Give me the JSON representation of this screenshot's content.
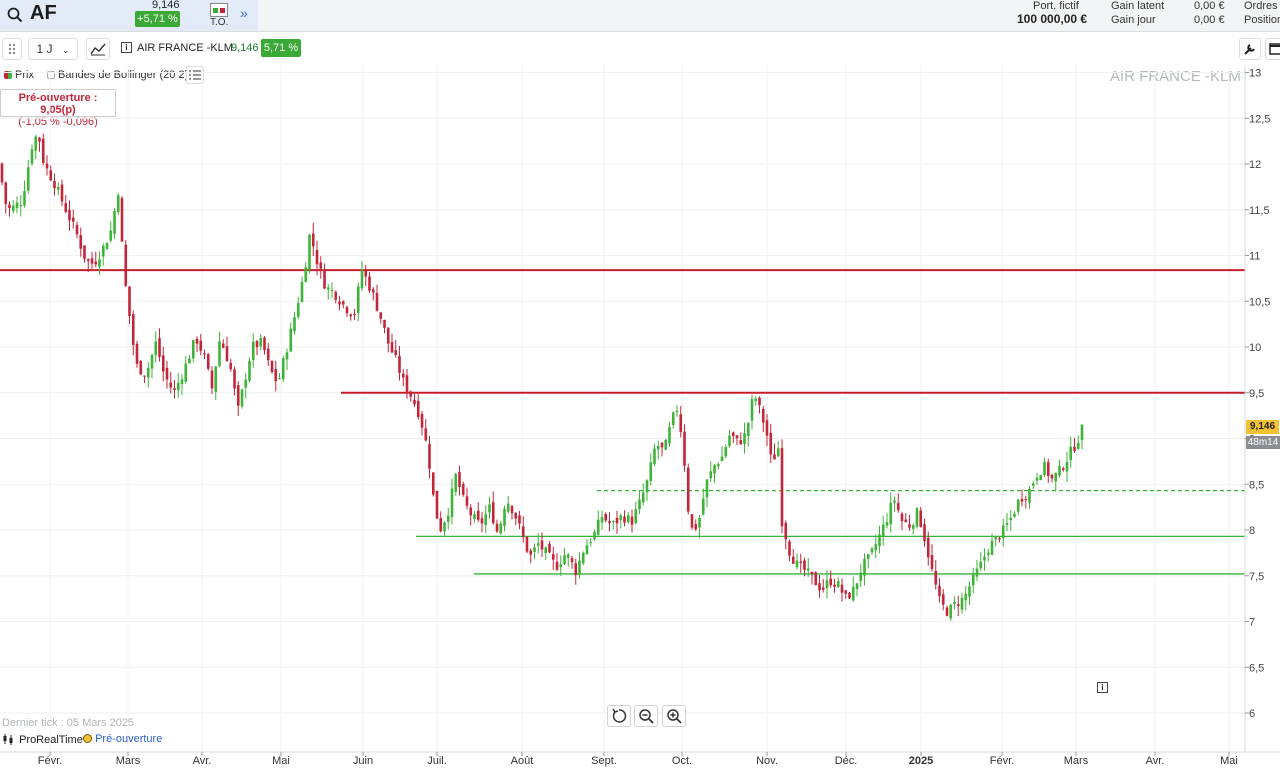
{
  "topbar": {
    "symbol": "AF",
    "price": "9,146",
    "change_badge": "+5,71 %",
    "to_label": "T.O.",
    "account": {
      "label1": "Port. fictif",
      "value1": "100 000,00 €",
      "gain_latent_label": "Gain latent",
      "gain_latent_value": "0,00 €",
      "gain_jour_label": "Gain jour",
      "gain_jour_value": "0,00 €",
      "ordres_label": "Ordres",
      "position_label": "Position"
    }
  },
  "toolbar": {
    "interval": "1 J",
    "instrument": "AIR FRANCE -KLM",
    "price": "9,146",
    "change": "5,71 %"
  },
  "legend": {
    "price": "Prix",
    "bollinger": "Bandes de Bollinger (20 2)"
  },
  "preopen": {
    "line1": "Pré-ouverture : 9,05(p)",
    "line2": "(-1,05 % -0,096)"
  },
  "watermark": "AIR FRANCE -KLM",
  "price_label": "9,146",
  "time_label": "48m14",
  "footer": {
    "last_tick": "Dernier tick : 05 Mars 2025",
    "brand": "ProRealTime",
    "session": "Pré-ouverture"
  },
  "colors": {
    "up": "#3fb33a",
    "down": "#c3263a",
    "resistance": "#c81e2b",
    "support": "#36b33a"
  },
  "chart_data": {
    "type": "candlestick",
    "instrument": "AIR FRANCE -KLM",
    "ylim": [
      5.8,
      13.1
    ],
    "y_ticks": [
      "13",
      "12,5",
      "12",
      "11,5",
      "11",
      "10,5",
      "10",
      "9,5",
      "9",
      "8,5",
      "8",
      "7,5",
      "7",
      "6,5",
      "6"
    ],
    "x_ticks": [
      "Févr.",
      "Mars",
      "Avr.",
      "Mai",
      "Juin",
      "Juil.",
      "Août",
      "Sept.",
      "Oct.",
      "Nov.",
      "Déc.",
      "2025",
      "Févr.",
      "Mars",
      "Avr.",
      "Mai"
    ],
    "last_price": 9.146,
    "horizontal_lines": [
      {
        "value": 10.84,
        "color": "red",
        "style": "solid"
      },
      {
        "value": 9.5,
        "color": "red",
        "style": "solid"
      },
      {
        "value": 8.43,
        "color": "green",
        "style": "dashed"
      },
      {
        "value": 7.93,
        "color": "green",
        "style": "solid"
      },
      {
        "value": 7.52,
        "color": "green",
        "style": "solid"
      }
    ],
    "close_path": [
      [
        0,
        12.0
      ],
      [
        4,
        11.6
      ],
      [
        10,
        11.5
      ],
      [
        22,
        11.6
      ],
      [
        32,
        12.2
      ],
      [
        38,
        12.35
      ],
      [
        44,
        12.0
      ],
      [
        54,
        11.8
      ],
      [
        62,
        11.6
      ],
      [
        70,
        11.4
      ],
      [
        78,
        11.2
      ],
      [
        84,
        11.0
      ],
      [
        90,
        10.9
      ],
      [
        96,
        10.95
      ],
      [
        104,
        11.1
      ],
      [
        112,
        11.3
      ],
      [
        118,
        11.75
      ],
      [
        124,
        10.8
      ],
      [
        130,
        10.3
      ],
      [
        136,
        9.8
      ],
      [
        146,
        9.7
      ],
      [
        156,
        10.05
      ],
      [
        164,
        9.7
      ],
      [
        174,
        9.5
      ],
      [
        184,
        9.75
      ],
      [
        196,
        10.1
      ],
      [
        204,
        9.9
      ],
      [
        212,
        9.55
      ],
      [
        220,
        10.1
      ],
      [
        230,
        9.8
      ],
      [
        238,
        9.3
      ],
      [
        244,
        9.6
      ],
      [
        252,
        10.0
      ],
      [
        262,
        10.05
      ],
      [
        270,
        9.75
      ],
      [
        278,
        9.6
      ],
      [
        286,
        9.95
      ],
      [
        296,
        10.4
      ],
      [
        304,
        10.8
      ],
      [
        310,
        11.25
      ],
      [
        318,
        10.9
      ],
      [
        326,
        10.65
      ],
      [
        334,
        10.6
      ],
      [
        344,
        10.45
      ],
      [
        354,
        10.35
      ],
      [
        362,
        10.85
      ],
      [
        372,
        10.6
      ],
      [
        380,
        10.35
      ],
      [
        388,
        10.05
      ],
      [
        396,
        9.85
      ],
      [
        404,
        9.6
      ],
      [
        412,
        9.45
      ],
      [
        420,
        9.25
      ],
      [
        428,
        8.85
      ],
      [
        434,
        8.3
      ],
      [
        440,
        8.0
      ],
      [
        448,
        8.2
      ],
      [
        456,
        8.6
      ],
      [
        464,
        8.3
      ],
      [
        472,
        8.15
      ],
      [
        480,
        8.05
      ],
      [
        490,
        8.25
      ],
      [
        498,
        7.95
      ],
      [
        506,
        8.35
      ],
      [
        514,
        8.2
      ],
      [
        522,
        7.95
      ],
      [
        530,
        7.7
      ],
      [
        538,
        7.85
      ],
      [
        546,
        7.75
      ],
      [
        556,
        7.6
      ],
      [
        566,
        7.75
      ],
      [
        576,
        7.55
      ],
      [
        584,
        7.8
      ],
      [
        594,
        7.95
      ],
      [
        602,
        8.15
      ],
      [
        612,
        8.05
      ],
      [
        622,
        8.15
      ],
      [
        632,
        8.1
      ],
      [
        640,
        8.3
      ],
      [
        648,
        8.55
      ],
      [
        656,
        8.95
      ],
      [
        664,
        8.85
      ],
      [
        672,
        9.2
      ],
      [
        678,
        9.35
      ],
      [
        684,
        8.8
      ],
      [
        690,
        8.0
      ],
      [
        698,
        8.05
      ],
      [
        706,
        8.5
      ],
      [
        714,
        8.7
      ],
      [
        722,
        8.8
      ],
      [
        730,
        9.05
      ],
      [
        738,
        8.95
      ],
      [
        746,
        9.05
      ],
      [
        754,
        9.5
      ],
      [
        760,
        9.3
      ],
      [
        766,
        9.1
      ],
      [
        772,
        8.7
      ],
      [
        778,
        8.95
      ],
      [
        782,
        8.1
      ],
      [
        790,
        7.75
      ],
      [
        798,
        7.6
      ],
      [
        806,
        7.55
      ],
      [
        814,
        7.45
      ],
      [
        822,
        7.35
      ],
      [
        830,
        7.45
      ],
      [
        838,
        7.4
      ],
      [
        846,
        7.25
      ],
      [
        854,
        7.35
      ],
      [
        862,
        7.6
      ],
      [
        870,
        7.7
      ],
      [
        878,
        7.9
      ],
      [
        886,
        8.1
      ],
      [
        894,
        8.35
      ],
      [
        902,
        8.1
      ],
      [
        910,
        8.05
      ],
      [
        918,
        8.2
      ],
      [
        926,
        7.85
      ],
      [
        932,
        7.55
      ],
      [
        940,
        7.2
      ],
      [
        948,
        7.1
      ],
      [
        956,
        7.2
      ],
      [
        964,
        7.25
      ],
      [
        972,
        7.45
      ],
      [
        980,
        7.6
      ],
      [
        988,
        7.8
      ],
      [
        996,
        7.9
      ],
      [
        1004,
        8.0
      ],
      [
        1012,
        8.15
      ],
      [
        1020,
        8.35
      ],
      [
        1028,
        8.4
      ],
      [
        1036,
        8.6
      ],
      [
        1044,
        8.7
      ],
      [
        1052,
        8.55
      ],
      [
        1060,
        8.65
      ],
      [
        1068,
        8.8
      ],
      [
        1076,
        8.95
      ],
      [
        1084,
        9.146
      ]
    ]
  }
}
